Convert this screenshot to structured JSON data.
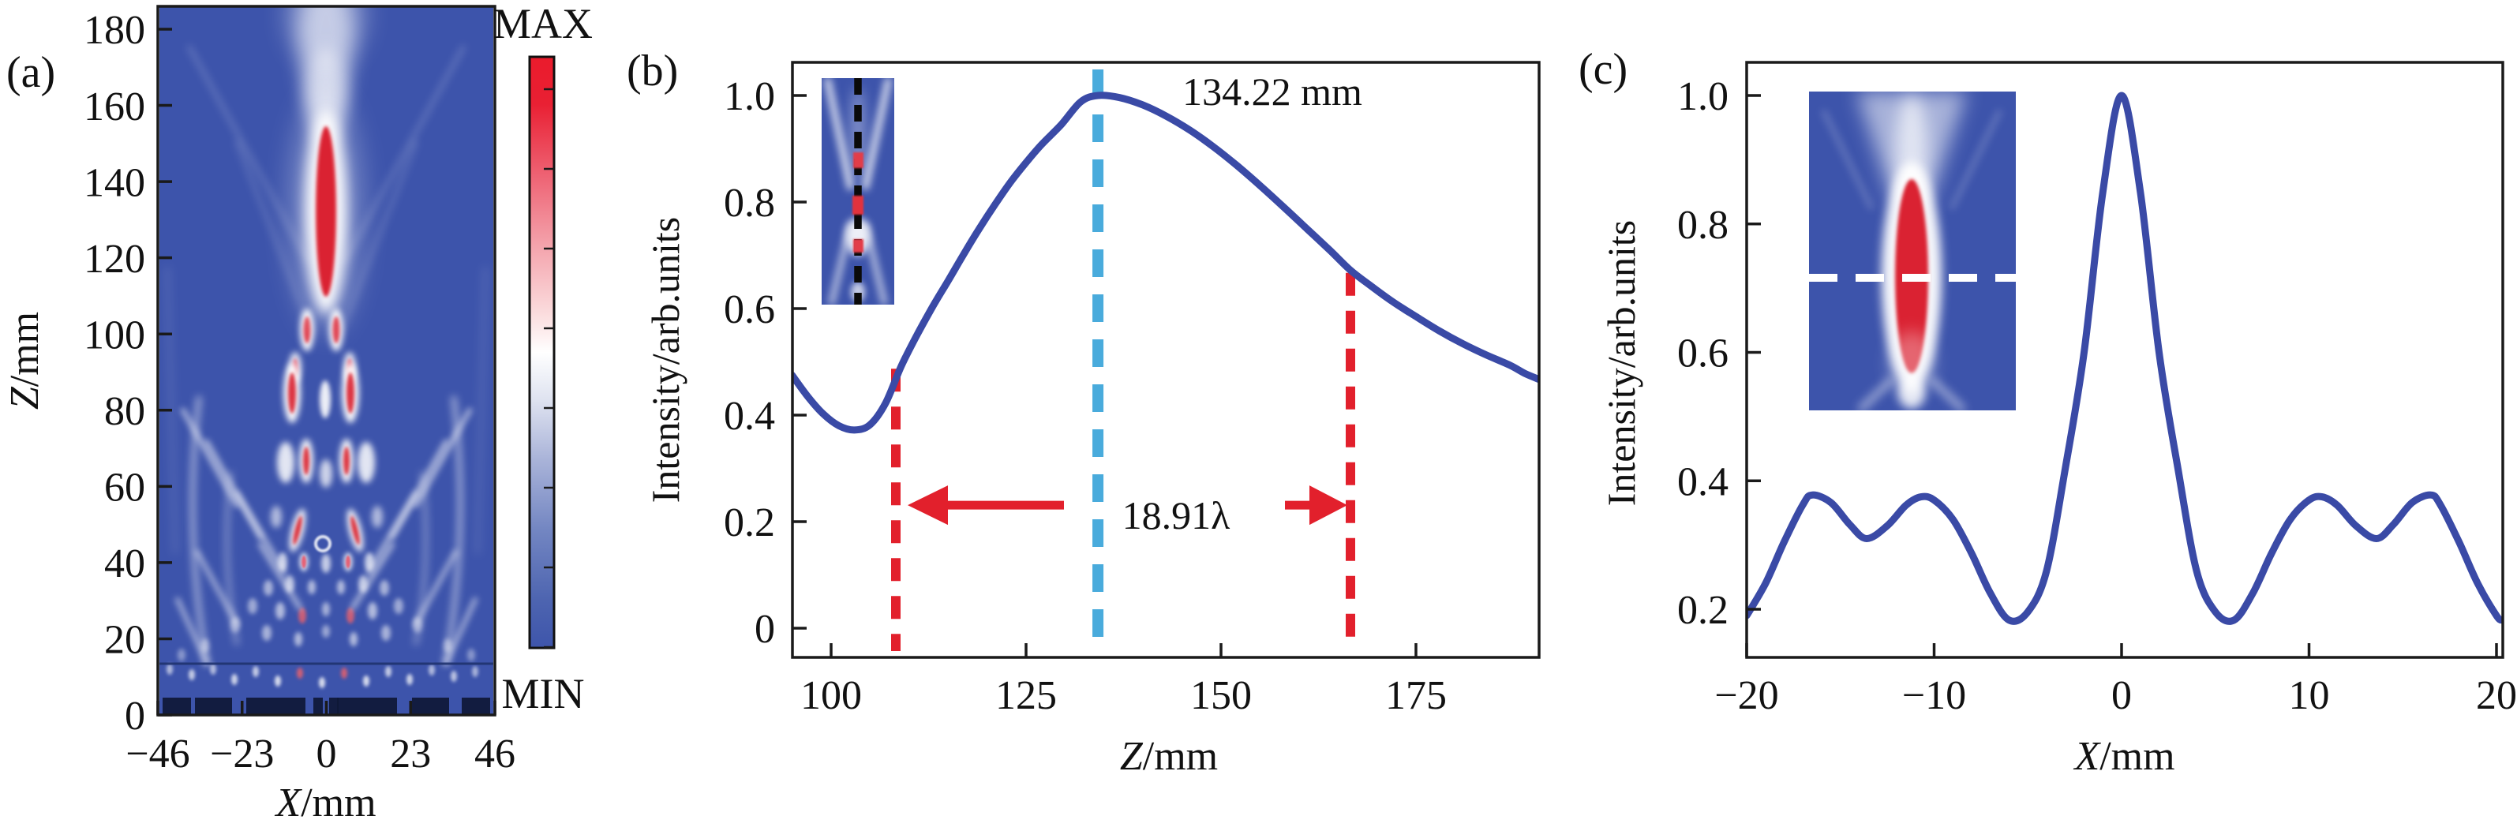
{
  "colors": {
    "curve": "#3a4aa6",
    "annotation_cyan": "#49abdc",
    "annotation_red": "#e2202c",
    "axis": "#1a1a1a",
    "heatmap_background": "#3d54ab",
    "heatmap_hot": "#da2433",
    "lens_structure": "#0e1836"
  },
  "chart_data": [
    {
      "id": "panel-a",
      "type": "heatmap",
      "panel_label": "(a)",
      "xlabel": "X/mm",
      "ylabel": "Z/mm",
      "xlim": [
        -46,
        46
      ],
      "ylim": [
        0,
        186
      ],
      "xtick_values": [
        -46,
        -23,
        0,
        23,
        46
      ],
      "xtick_labels": [
        "−46",
        "−23",
        "0",
        "23",
        "46"
      ],
      "ytick_values": [
        0,
        20,
        40,
        60,
        80,
        100,
        120,
        140,
        160,
        180
      ],
      "ytick_labels": [
        "0",
        "20",
        "40",
        "60",
        "80",
        "100",
        "120",
        "140",
        "160",
        "180"
      ],
      "colorbar": {
        "top_label": "MAX",
        "bottom_label": "MIN",
        "colormap": "blue-white-red"
      },
      "description": "Simulated XZ-plane intensity map: bright elongated focal spot on the optical axis (X=0) between Z≈107 mm and Z≈157 mm, cascaded interference lobes and diagonal side rays below it, binary lens elements along Z≈0."
    },
    {
      "id": "panel-b",
      "type": "line",
      "panel_label": "(b)",
      "xlabel": "Z/mm",
      "ylabel": "Intensity/arb.units",
      "xlim": [
        95,
        191
      ],
      "ylim": [
        -0.08,
        1.06
      ],
      "xtick_values": [
        100,
        125,
        150,
        175
      ],
      "xtick_labels": [
        "100",
        "125",
        "150",
        "175"
      ],
      "ytick_values": [
        0,
        0.2,
        0.4,
        0.6,
        0.8,
        1.0
      ],
      "ytick_labels": [
        "0",
        "0.2",
        "0.4",
        "0.6",
        "0.8",
        "1.0"
      ],
      "series": [
        {
          "name": "On-axis intensity along Z",
          "x": [
            95,
            97,
            99,
            101,
            103,
            105,
            107,
            109,
            111,
            113,
            115,
            117,
            119,
            121,
            123,
            125,
            127,
            129.5,
            132,
            134.22,
            137,
            140,
            143,
            146,
            149,
            152,
            155,
            158,
            161,
            164,
            166.6,
            169,
            172,
            175,
            178,
            181,
            184,
            187,
            189,
            190.8
          ],
          "y": [
            0.475,
            0.435,
            0.402,
            0.38,
            0.372,
            0.382,
            0.423,
            0.492,
            0.55,
            0.603,
            0.652,
            0.702,
            0.75,
            0.795,
            0.837,
            0.874,
            0.908,
            0.945,
            0.988,
            1.0,
            0.996,
            0.982,
            0.961,
            0.935,
            0.904,
            0.869,
            0.831,
            0.791,
            0.75,
            0.709,
            0.672,
            0.645,
            0.613,
            0.585,
            0.558,
            0.534,
            0.513,
            0.494,
            0.478,
            0.467
          ]
        }
      ],
      "annotations": {
        "peak_z": 134.22,
        "peak_label": "134.22 mm",
        "width_label": "18.91λ",
        "width_left_z": 108.3,
        "width_right_z": 166.6,
        "width_left_top_value": 0.487,
        "width_right_top_value": 0.667,
        "arrow_level": 0.231
      },
      "inset_description": "Inset: axial intensity map with black dashed line marking the Z cut"
    },
    {
      "id": "panel-c",
      "type": "line",
      "panel_label": "(c)",
      "xlabel": "X/mm",
      "ylabel": "Intensity/arb.units",
      "xlim": [
        -20,
        20
      ],
      "ylim": [
        0.11,
        1.05
      ],
      "xtick_values": [
        -20,
        -10,
        0,
        10,
        20
      ],
      "xtick_labels": [
        "−20",
        "−10",
        "0",
        "10",
        "20"
      ],
      "ytick_values": [
        0.2,
        0.4,
        0.6,
        0.8,
        1.0
      ],
      "ytick_labels": [
        "0.2",
        "0.4",
        "0.6",
        "0.8",
        "1.0"
      ],
      "series": [
        {
          "name": "Transverse intensity at focal plane",
          "x": [
            -20,
            -19,
            -18,
            -17,
            -16.5,
            -15.5,
            -14.5,
            -13.6,
            -12.5,
            -11.5,
            -10.7,
            -10,
            -9,
            -8,
            -7,
            -6,
            -5,
            -4,
            -3,
            -2,
            -1,
            0,
            1,
            2,
            3,
            4,
            5,
            6,
            7,
            8,
            9,
            10,
            10.7,
            11.5,
            12.5,
            13.6,
            14.5,
            15.5,
            16.5,
            17,
            18,
            19,
            20,
            20.3
          ],
          "y": [
            0.19,
            0.24,
            0.305,
            0.363,
            0.378,
            0.366,
            0.332,
            0.31,
            0.33,
            0.362,
            0.375,
            0.37,
            0.34,
            0.287,
            0.225,
            0.183,
            0.196,
            0.26,
            0.42,
            0.6,
            0.85,
            1.0,
            0.85,
            0.6,
            0.42,
            0.26,
            0.196,
            0.183,
            0.225,
            0.287,
            0.34,
            0.37,
            0.375,
            0.362,
            0.33,
            0.31,
            0.332,
            0.366,
            0.378,
            0.363,
            0.305,
            0.24,
            0.19,
            0.183
          ]
        }
      ],
      "inset_description": "Inset: focal-region intensity map with white dashed line marking the X cut"
    }
  ]
}
